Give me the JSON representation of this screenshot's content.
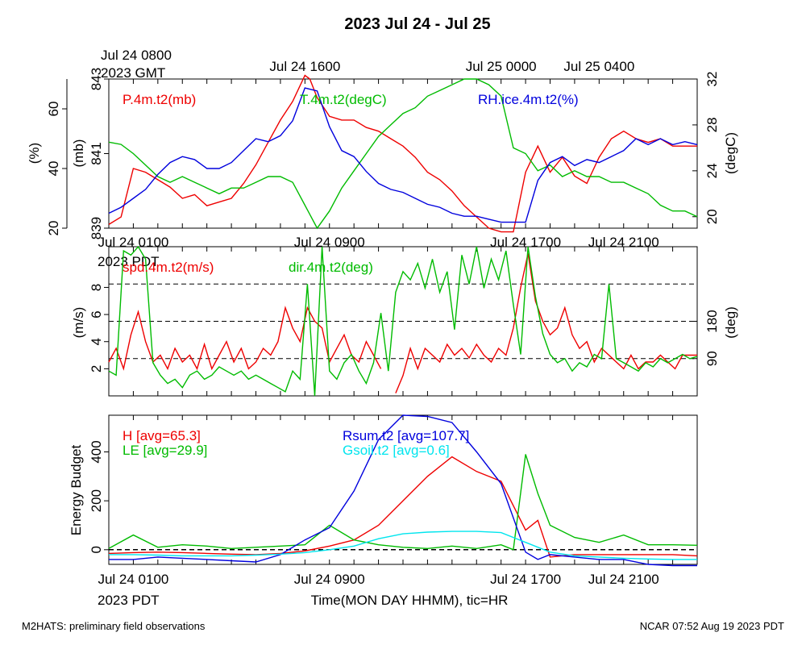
{
  "page": {
    "title": "2023 Jul 24 - Jul 25",
    "footer_left": "M2HATS: preliminary field observations",
    "footer_right": "NCAR 07:52 Aug 19 2023 PDT",
    "gmt_top_label_line1": "Jul 24 0800",
    "gmt_top_label_line2": "2023 GMT",
    "pdt_label": "2023 PDT",
    "xlabel": "Time(MON DAY HHMM), tic=HR"
  },
  "colors": {
    "red": "#ee0000",
    "green": "#00bb00",
    "blue": "#0000dd",
    "cyan": "#00e5ee",
    "black": "#000000"
  },
  "chart_data": [
    {
      "type": "line",
      "panel": "pressure-temperature-rh",
      "x_unit": "hours since 2023 Jul 24 0000 PDT",
      "xlim": [
        0,
        24
      ],
      "top_ticks": [
        {
          "label": "Jul 24 1600",
          "x": 8
        },
        {
          "label": "Jul 25 0000",
          "x": 16
        },
        {
          "label": "Jul 25 0400",
          "x": 20
        }
      ],
      "bottom_ticks": [
        {
          "label": "Jul 24 0100",
          "x": 1
        },
        {
          "label": "Jul 24 0900",
          "x": 9
        },
        {
          "label": "Jul 24 1700",
          "x": 17
        },
        {
          "label": "Jul 24 2100",
          "x": 21
        }
      ],
      "axes": {
        "mb": {
          "label": "(mb)",
          "lim": [
            839,
            843
          ],
          "ticks": [
            839,
            841,
            843
          ]
        },
        "pct": {
          "label": "(%)",
          "lim": [
            20,
            70
          ],
          "ticks": [
            20,
            40,
            60
          ]
        },
        "degC": {
          "label": "(degC)",
          "lim": [
            19,
            32
          ],
          "ticks": [
            20,
            24,
            28,
            32
          ]
        }
      },
      "series": [
        {
          "name": "P.4m.t2(mb)",
          "color": "red",
          "axis": "mb",
          "x": [
            0,
            0.5,
            1,
            1.5,
            2,
            2.5,
            3,
            3.5,
            4,
            4.5,
            5,
            5.5,
            6,
            6.5,
            7,
            7.5,
            8,
            8.2,
            8.5,
            9,
            9.5,
            10,
            10.5,
            11,
            11.5,
            12,
            12.5,
            13,
            13.5,
            14,
            14.5,
            15,
            15.5,
            16,
            16.5,
            17,
            17.5,
            18,
            18.5,
            19,
            19.5,
            20,
            20.5,
            21,
            21.5,
            22,
            22.5,
            23,
            23.5,
            24
          ],
          "y": [
            839.1,
            839.3,
            840.6,
            840.5,
            840.3,
            840.1,
            839.8,
            839.9,
            839.6,
            839.7,
            839.8,
            840.2,
            840.7,
            841.3,
            841.9,
            842.4,
            843.1,
            843.0,
            842.5,
            842.0,
            841.9,
            841.9,
            841.7,
            841.6,
            841.4,
            841.2,
            840.9,
            840.5,
            840.3,
            840.0,
            839.6,
            839.3,
            839.0,
            838.9,
            838.9,
            840.5,
            841.2,
            840.5,
            840.9,
            840.4,
            840.2,
            840.9,
            841.4,
            841.6,
            841.4,
            841.3,
            841.4,
            841.2,
            841.2,
            841.2
          ]
        },
        {
          "name": "T.4m.t2(degC)",
          "color": "green",
          "axis": "degC",
          "x": [
            0,
            0.5,
            1,
            1.5,
            2,
            2.5,
            3,
            3.5,
            4,
            4.5,
            5,
            5.5,
            6,
            6.5,
            7,
            7.5,
            8,
            8.5,
            9,
            9.5,
            10,
            10.5,
            11,
            11.5,
            12,
            12.5,
            13,
            13.5,
            14,
            14.5,
            15,
            15.5,
            16,
            16.5,
            17,
            17.5,
            18,
            18.5,
            19,
            19.5,
            20,
            20.5,
            21,
            21.5,
            22,
            22.5,
            23,
            23.5,
            24
          ],
          "y": [
            26.5,
            26.3,
            25.5,
            24.5,
            23.5,
            23.0,
            23.5,
            23.0,
            22.5,
            22.0,
            22.5,
            22.5,
            23.0,
            23.5,
            23.5,
            23.0,
            21.0,
            19.0,
            20.5,
            22.5,
            24.0,
            25.5,
            27.0,
            28.0,
            29.0,
            29.5,
            30.5,
            31.0,
            31.5,
            32.0,
            32.0,
            31.5,
            30.5,
            26.0,
            25.5,
            24.0,
            24.5,
            23.5,
            24.0,
            23.5,
            23.5,
            23.0,
            23.0,
            22.5,
            22.0,
            21.0,
            20.5,
            20.5,
            20.0
          ]
        },
        {
          "name": "RH.ice.4m.t2(%)",
          "color": "blue",
          "axis": "pct",
          "x": [
            0,
            0.5,
            1,
            1.5,
            2,
            2.5,
            3,
            3.5,
            4,
            4.5,
            5,
            5.5,
            6,
            6.5,
            7,
            7.5,
            8,
            8.5,
            9,
            9.5,
            10,
            10.5,
            11,
            11.5,
            12,
            12.5,
            13,
            13.5,
            14,
            14.5,
            15,
            15.5,
            16,
            16.5,
            17,
            17.5,
            18,
            18.5,
            19,
            19.5,
            20,
            20.5,
            21,
            21.5,
            22,
            22.5,
            23,
            23.5,
            24
          ],
          "y": [
            25,
            27,
            30,
            33,
            38,
            42,
            44,
            43,
            40,
            40,
            42,
            46,
            50,
            49,
            51,
            56,
            67,
            66,
            54,
            46,
            44,
            39,
            35,
            33,
            32,
            30,
            28,
            27,
            25,
            24,
            24,
            23,
            22,
            22,
            22,
            36,
            42,
            44,
            41,
            43,
            42,
            44,
            46,
            50,
            48,
            50,
            48,
            49,
            48
          ]
        }
      ],
      "legend": [
        {
          "text": "P.4m.t2(mb)",
          "color": "red"
        },
        {
          "text": "T.4m.t2(degC)",
          "color": "green"
        },
        {
          "text": "RH.ice.4m.t2(%)",
          "color": "blue"
        }
      ]
    },
    {
      "type": "line",
      "panel": "wind",
      "xlim": [
        0,
        24
      ],
      "ticks": [
        {
          "label": "Jul 24 0100",
          "x": 1
        },
        {
          "label": "Jul 24 0900",
          "x": 9
        },
        {
          "label": "Jul 24 1700",
          "x": 17
        },
        {
          "label": "Jul 24 2100",
          "x": 21
        }
      ],
      "axes": {
        "ms": {
          "label": "(m/s)",
          "lim": [
            0,
            11
          ],
          "ticks": [
            2,
            4,
            6,
            8
          ]
        },
        "deg": {
          "label": "(deg)",
          "lim": [
            0,
            360
          ],
          "ticks": [
            90,
            180
          ]
        }
      },
      "reference_lines_deg": [
        90,
        180,
        270
      ],
      "series": [
        {
          "name": "spd.4m.t2(m/s)",
          "color": "red",
          "axis": "ms",
          "x": [
            0,
            0.3,
            0.6,
            0.9,
            1.2,
            1.5,
            1.8,
            2.1,
            2.4,
            2.7,
            3,
            3.3,
            3.6,
            3.9,
            4.2,
            4.5,
            4.8,
            5.1,
            5.4,
            5.7,
            6,
            6.3,
            6.6,
            6.9,
            7.2,
            7.5,
            7.8,
            8.1,
            8.4,
            8.7,
            9,
            9.3,
            9.6,
            9.9,
            10.2,
            10.5,
            10.8,
            11.1,
            11.4,
            11.7,
            12,
            12.3,
            12.6,
            12.9,
            13.2,
            13.5,
            13.8,
            14.1,
            14.4,
            14.7,
            15,
            15.3,
            15.6,
            15.9,
            16.2,
            16.5,
            16.8,
            17.1,
            17.4,
            17.7,
            18,
            18.3,
            18.6,
            18.9,
            19.2,
            19.5,
            19.8,
            20.1,
            20.4,
            20.7,
            21,
            21.3,
            21.6,
            21.9,
            22.2,
            22.5,
            22.8,
            23.1,
            23.4,
            23.7,
            24
          ],
          "y": [
            2.5,
            3.5,
            2.0,
            4.5,
            6.2,
            4.0,
            2.5,
            3.0,
            2.0,
            3.5,
            2.5,
            3.0,
            2.0,
            3.8,
            2.0,
            3.0,
            4.0,
            2.5,
            3.5,
            2.0,
            2.5,
            3.5,
            3.0,
            4.0,
            6.5,
            5.0,
            4.0,
            6.5,
            5.5,
            5.0,
            2.5,
            3.5,
            4.5,
            3.0,
            2.5,
            4.0,
            3.0,
            2.0,
            null,
            0.2,
            1.5,
            3.5,
            2.0,
            3.5,
            3.0,
            2.5,
            3.8,
            3.0,
            3.5,
            2.8,
            3.8,
            3.0,
            2.5,
            3.5,
            3.0,
            5.0,
            8.0,
            10.5,
            7.0,
            5.5,
            4.5,
            5.0,
            6.5,
            4.5,
            3.5,
            4.0,
            2.5,
            3.5,
            3.0,
            2.5,
            2.0,
            3.0,
            2.0,
            2.5,
            2.5,
            3.0,
            2.5,
            2.0,
            3.0,
            3.0,
            3.0
          ]
        },
        {
          "name": "dir.4m.t2(deg)",
          "color": "green",
          "axis": "deg",
          "x": [
            0,
            0.3,
            0.6,
            0.9,
            1.2,
            1.5,
            1.8,
            2.1,
            2.4,
            2.7,
            3,
            3.3,
            3.6,
            3.9,
            4.2,
            4.5,
            4.8,
            5.1,
            5.4,
            5.7,
            6,
            6.3,
            6.6,
            6.9,
            7.2,
            7.5,
            7.8,
            8.1,
            8.4,
            8.7,
            9,
            9.3,
            9.6,
            9.9,
            10.2,
            10.5,
            10.8,
            11.1,
            11.4,
            11.7,
            12,
            12.3,
            12.6,
            12.9,
            13.2,
            13.5,
            13.8,
            14.1,
            14.4,
            14.7,
            15,
            15.3,
            15.6,
            15.9,
            16.2,
            16.5,
            16.8,
            17.1,
            17.4,
            17.7,
            18,
            18.3,
            18.6,
            18.9,
            19.2,
            19.5,
            19.8,
            20.1,
            20.4,
            20.7,
            21,
            21.3,
            21.6,
            21.9,
            22.2,
            22.5,
            22.8,
            23.1,
            23.4,
            23.7,
            24
          ],
          "y": [
            60,
            50,
            350,
            340,
            360,
            330,
            80,
            50,
            30,
            40,
            20,
            50,
            60,
            40,
            50,
            70,
            60,
            50,
            60,
            40,
            50,
            40,
            30,
            20,
            10,
            60,
            40,
            270,
            0,
            360,
            60,
            40,
            80,
            100,
            60,
            30,
            80,
            200,
            60,
            250,
            300,
            280,
            320,
            260,
            330,
            250,
            300,
            160,
            340,
            270,
            360,
            260,
            330,
            280,
            350,
            220,
            100,
            360,
            240,
            150,
            100,
            80,
            90,
            60,
            80,
            70,
            100,
            90,
            270,
            90,
            80,
            70,
            60,
            80,
            70,
            90,
            80,
            90,
            100,
            90,
            95
          ]
        }
      ],
      "legend": [
        {
          "text": "spd.4m.t2(m/s)",
          "color": "red"
        },
        {
          "text": "dir.4m.t2(deg)",
          "color": "green"
        }
      ]
    },
    {
      "type": "line",
      "panel": "energy-budget",
      "xlim": [
        0,
        24
      ],
      "ticks": [
        {
          "label": "Jul 24 0100",
          "x": 1
        },
        {
          "label": "Jul 24 0900",
          "x": 9
        },
        {
          "label": "Jul 24 1700",
          "x": 17
        },
        {
          "label": "Jul 24 2100",
          "x": 21
        }
      ],
      "axes": {
        "wm2": {
          "label": "Energy Budget",
          "lim": [
            -60,
            550
          ],
          "ticks": [
            0,
            200,
            400
          ]
        }
      },
      "reference_lines": [
        0
      ],
      "series": [
        {
          "name": "H [avg=65.3]",
          "color": "red",
          "x": [
            0,
            1,
            2,
            3,
            4,
            5,
            6,
            7,
            8,
            9,
            10,
            11,
            12,
            13,
            14,
            15,
            16,
            17,
            17.5,
            18,
            19,
            20,
            21,
            22,
            23,
            24
          ],
          "y": [
            -15,
            -12,
            -10,
            -12,
            -15,
            -18,
            -20,
            -15,
            -5,
            15,
            40,
            100,
            200,
            300,
            380,
            320,
            280,
            80,
            120,
            -30,
            -20,
            -20,
            -20,
            -20,
            -20,
            -25
          ]
        },
        {
          "name": "LE [avg=29.9]",
          "color": "green",
          "x": [
            0,
            1,
            2,
            3,
            4,
            5,
            6,
            7,
            8,
            9,
            10,
            11,
            12,
            13,
            14,
            15,
            16,
            16.5,
            17,
            17.5,
            18,
            19,
            20,
            21,
            22,
            23,
            24
          ],
          "y": [
            5,
            60,
            10,
            20,
            15,
            5,
            10,
            15,
            20,
            100,
            40,
            20,
            10,
            5,
            15,
            5,
            20,
            0,
            390,
            230,
            100,
            50,
            30,
            60,
            20,
            20,
            18
          ]
        },
        {
          "name": "Rsum.t2 [avg=107.7]",
          "color": "blue",
          "x": [
            0,
            1,
            2,
            3,
            4,
            5,
            6,
            7,
            8,
            9,
            10,
            11,
            12,
            13,
            14,
            15,
            16,
            17,
            17.5,
            18,
            19,
            20,
            21,
            22,
            23,
            24
          ],
          "y": [
            -40,
            -40,
            -30,
            -35,
            -40,
            -45,
            -50,
            -20,
            40,
            90,
            240,
            450,
            550,
            545,
            520,
            400,
            270,
            -10,
            -40,
            -20,
            -30,
            -40,
            -40,
            -60,
            -65,
            -65
          ]
        },
        {
          "name": "Gsoil.t2 [avg=0.6]",
          "color": "cyan",
          "x": [
            0,
            1,
            2,
            3,
            4,
            5,
            6,
            7,
            8,
            9,
            10,
            11,
            12,
            13,
            14,
            15,
            16,
            17,
            18,
            19,
            20,
            21,
            22,
            23,
            24
          ],
          "y": [
            -20,
            -20,
            -22,
            -25,
            -25,
            -25,
            -22,
            -18,
            -12,
            0,
            15,
            45,
            65,
            72,
            75,
            75,
            70,
            30,
            -10,
            -25,
            -30,
            -35,
            -38,
            -40,
            -40
          ]
        }
      ],
      "legend": [
        {
          "text": "H [avg=65.3]",
          "color": "red"
        },
        {
          "text": "LE [avg=29.9]",
          "color": "green"
        },
        {
          "text": "Rsum.t2 [avg=107.7]",
          "color": "blue"
        },
        {
          "text": "Gsoil.t2 [avg=0.6]",
          "color": "cyan"
        }
      ]
    }
  ]
}
